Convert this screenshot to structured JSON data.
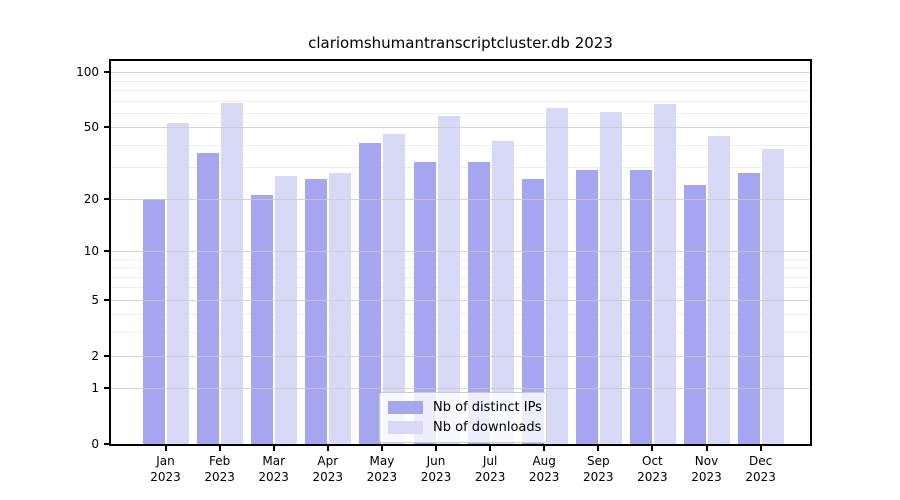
{
  "chart_data": {
    "type": "bar",
    "title": "clariomshumantranscriptcluster.db 2023",
    "scale": "log1p",
    "axis_max": 115,
    "categories": [
      {
        "month": "Jan",
        "year": "2023"
      },
      {
        "month": "Feb",
        "year": "2023"
      },
      {
        "month": "Mar",
        "year": "2023"
      },
      {
        "month": "Apr",
        "year": "2023"
      },
      {
        "month": "May",
        "year": "2023"
      },
      {
        "month": "Jun",
        "year": "2023"
      },
      {
        "month": "Jul",
        "year": "2023"
      },
      {
        "month": "Aug",
        "year": "2023"
      },
      {
        "month": "Sep",
        "year": "2023"
      },
      {
        "month": "Oct",
        "year": "2023"
      },
      {
        "month": "Nov",
        "year": "2023"
      },
      {
        "month": "Dec",
        "year": "2023"
      }
    ],
    "series": [
      {
        "name": "Nb of distinct IPs",
        "color": "#a5a5f0",
        "values": [
          20,
          36,
          21,
          26,
          41,
          32,
          32,
          26,
          29,
          29,
          24,
          28
        ]
      },
      {
        "name": "Nb of downloads",
        "color": "#d8d8f7",
        "values": [
          53,
          68,
          27,
          28,
          46,
          58,
          42,
          64,
          61,
          67,
          45,
          38
        ]
      }
    ],
    "yticks": [
      0,
      1,
      2,
      5,
      10,
      20,
      50,
      100
    ],
    "minor_yticks": [
      3,
      4,
      6,
      7,
      8,
      9,
      30,
      40,
      60,
      70,
      80,
      90
    ],
    "grid": {
      "major_color": "#c9c9c9",
      "minor_color": "#ededed"
    },
    "legend_position": "bottom-center",
    "xlabel": "",
    "ylabel": ""
  }
}
